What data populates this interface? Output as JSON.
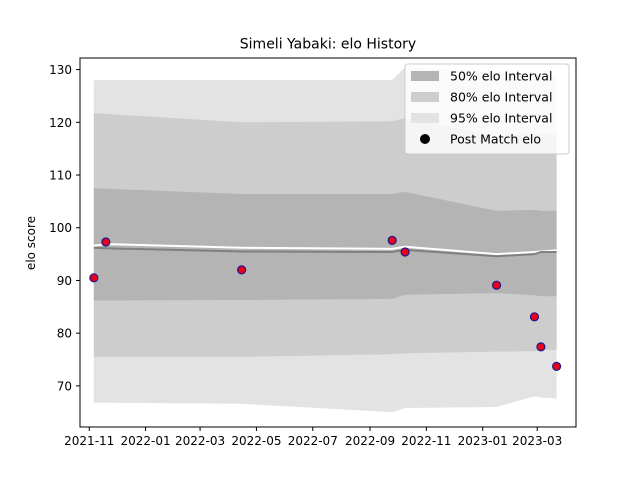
{
  "chart_data": {
    "type": "area",
    "title": "Simeli Yabaki: elo History",
    "xlabel": "",
    "ylabel": "elo score",
    "xlim": [
      "2021-10-22",
      "2023-04-12"
    ],
    "ylim": [
      62.2,
      132.2
    ],
    "x_ticks": [
      {
        "date": "2021-11-01",
        "label": "2021-11"
      },
      {
        "date": "2022-01-01",
        "label": "2022-01"
      },
      {
        "date": "2022-03-01",
        "label": "2022-03"
      },
      {
        "date": "2022-05-01",
        "label": "2022-05"
      },
      {
        "date": "2022-07-01",
        "label": "2022-07"
      },
      {
        "date": "2022-09-01",
        "label": "2022-09"
      },
      {
        "date": "2022-11-01",
        "label": "2022-11"
      },
      {
        "date": "2023-01-01",
        "label": "2023-01"
      },
      {
        "date": "2023-03-01",
        "label": "2023-03"
      }
    ],
    "y_ticks": [
      70,
      80,
      90,
      100,
      110,
      120,
      130
    ],
    "grid": false,
    "legend_position": "top-right",
    "series": [
      {
        "name": "95% elo Interval",
        "kind": "band",
        "color": "#e3e3e3",
        "x": [
          "2021-11-06",
          "2021-11-19",
          "2022-04-15",
          "2022-09-25",
          "2022-10-09",
          "2023-01-16",
          "2023-02-26",
          "2023-03-05",
          "2023-03-22"
        ],
        "lower": [
          66.8,
          66.8,
          66.6,
          65.0,
          65.8,
          66.0,
          68.0,
          67.8,
          67.6
        ],
        "upper": [
          128.0,
          128.0,
          128.0,
          128.0,
          130.5,
          129.5,
          129.0,
          129.0,
          128.5
        ]
      },
      {
        "name": "80% elo Interval",
        "kind": "band",
        "color": "#cdcdcd",
        "x": [
          "2021-11-06",
          "2021-11-19",
          "2022-04-15",
          "2022-09-25",
          "2022-10-09",
          "2023-01-16",
          "2023-02-26",
          "2023-03-05",
          "2023-03-22"
        ],
        "lower": [
          75.5,
          75.5,
          75.5,
          76.0,
          76.2,
          76.5,
          76.6,
          76.8,
          76.8
        ],
        "upper": [
          121.8,
          121.6,
          120.0,
          120.2,
          120.8,
          117.4,
          117.8,
          117.6,
          117.8
        ]
      },
      {
        "name": "50% elo Interval",
        "kind": "band",
        "color": "#b4b4b4",
        "x": [
          "2021-11-06",
          "2021-11-19",
          "2022-04-15",
          "2022-09-25",
          "2022-10-09",
          "2023-01-16",
          "2023-02-26",
          "2023-03-05",
          "2023-03-22"
        ],
        "lower": [
          86.2,
          86.2,
          86.3,
          86.5,
          87.3,
          87.6,
          87.2,
          87.0,
          87.0
        ],
        "upper": [
          107.5,
          107.4,
          106.4,
          106.4,
          106.8,
          103.2,
          103.4,
          103.2,
          103.2
        ]
      },
      {
        "kind": "line",
        "color": "#ffffff",
        "x": [
          "2021-11-06",
          "2021-11-19",
          "2022-04-15",
          "2022-09-25",
          "2022-10-09",
          "2023-01-16",
          "2023-02-26",
          "2023-03-05",
          "2023-03-22"
        ],
        "y": [
          96.6,
          96.9,
          96.2,
          96.0,
          96.4,
          95.0,
          95.4,
          95.5,
          95.7
        ]
      },
      {
        "kind": "line",
        "color": "#808080",
        "x": [
          "2021-11-06",
          "2021-11-19",
          "2022-04-15",
          "2022-09-25",
          "2022-10-09",
          "2023-01-16",
          "2023-02-26",
          "2023-03-05",
          "2023-03-22"
        ],
        "y": [
          96.2,
          96.1,
          95.5,
          95.4,
          95.8,
          94.6,
          95.0,
          95.4,
          95.4
        ]
      },
      {
        "name": "Post Match elo",
        "kind": "scatter",
        "color": "#e8001c",
        "edge_color": "#1a1a8c",
        "x": [
          "2021-11-06",
          "2021-11-19",
          "2022-04-15",
          "2022-09-25",
          "2022-10-09",
          "2023-01-16",
          "2023-02-26",
          "2023-03-05",
          "2023-03-22"
        ],
        "y": [
          90.5,
          97.3,
          92.0,
          97.6,
          95.4,
          89.1,
          83.1,
          77.4,
          73.7
        ]
      }
    ],
    "legend": [
      {
        "label": "50% elo Interval",
        "swatch": "patch",
        "color": "#b4b4b4"
      },
      {
        "label": "80% elo Interval",
        "swatch": "patch",
        "color": "#cdcdcd"
      },
      {
        "label": "95% elo Interval",
        "swatch": "patch",
        "color": "#e3e3e3"
      },
      {
        "label": "Post Match elo",
        "swatch": "marker",
        "color": "#000000"
      }
    ]
  }
}
